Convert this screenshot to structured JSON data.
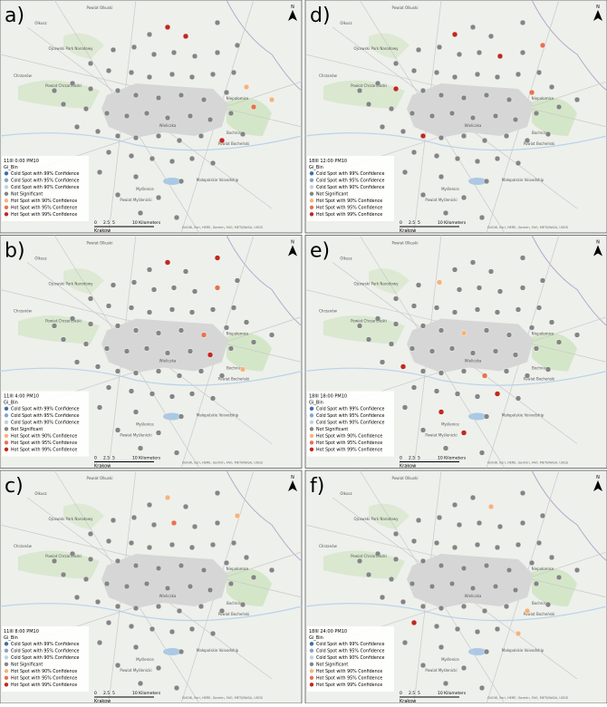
{
  "panels": [
    {
      "label": "a)",
      "legend_title": "11III 0:00 PM10"
    },
    {
      "label": "d)",
      "legend_title": "18III 12:00 PM10"
    },
    {
      "label": "b)",
      "legend_title": "11III 4:00 PM10"
    },
    {
      "label": "e)",
      "legend_title": "18III 18:00 PM10"
    },
    {
      "label": "c)",
      "legend_title": "11III 8:00 PM10"
    },
    {
      "label": "f)",
      "legend_title": "18III 24:00 PM10"
    }
  ],
  "legend": {
    "field": "Gi_Bin",
    "items": [
      {
        "text": "Cold Spot with 99% Confidence",
        "color": "#3f6fa6"
      },
      {
        "text": "Cold Spot with 95% Confidence",
        "color": "#86a7c9"
      },
      {
        "text": "Cold Spot with 90% Confidence",
        "color": "#c3cfdc"
      },
      {
        "text": "Not Significant",
        "color": "#858585"
      },
      {
        "text": "Hot Spot with 90% Confidence",
        "color": "#f3b47c"
      },
      {
        "text": "Hot Spot with 95% Confidence",
        "color": "#e8724f"
      },
      {
        "text": "Hot Spot with 99% Confidence",
        "color": "#c0291f"
      }
    ]
  },
  "scale": {
    "labels": [
      "0",
      "2.5",
      "5",
      "10 Kilometers"
    ]
  },
  "city": "Krakow",
  "attribution": "GUGiK, Esri, HERE, Garmin, FAO, METI/NASA, USGS",
  "north": "N",
  "places": [
    "Olkusz",
    "Powiat Olkuski",
    "Ojcowski Park Narodowy",
    "Chrzanów",
    "Powiat Chrzanowski",
    "Niepołomice",
    "Wieliczka",
    "Bochnia",
    "Powiat Bocheński",
    "Myślenice",
    "Powiat Myślenicki",
    "Małopolskie Voivodship"
  ]
}
